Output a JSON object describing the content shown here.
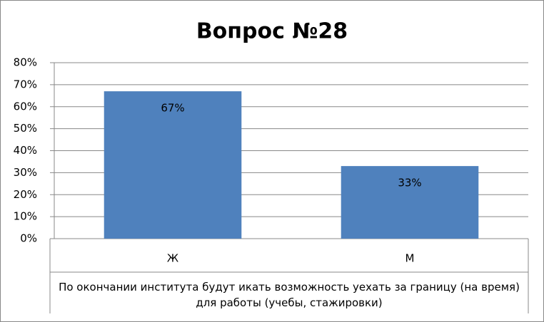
{
  "chart_data": {
    "type": "bar",
    "title": "Вопрос №28",
    "categories": [
      "Ж",
      "М"
    ],
    "values": [
      67,
      33
    ],
    "value_labels": [
      "67%",
      "33%"
    ],
    "color": "#4f81bd",
    "x_label": "По окончании  института  будут икать возможность уехать за границу  (на время) для работы (учебы, стажировки)",
    "ylim": [
      0,
      80
    ],
    "yticks": [
      {
        "value": 0,
        "label": "0%"
      },
      {
        "value": 10,
        "label": "10%"
      },
      {
        "value": 20,
        "label": "20%"
      },
      {
        "value": 30,
        "label": "30%"
      },
      {
        "value": 40,
        "label": "40%"
      },
      {
        "value": 50,
        "label": "50%"
      },
      {
        "value": 60,
        "label": "60%"
      },
      {
        "value": 70,
        "label": "70%"
      },
      {
        "value": 80,
        "label": "80%"
      }
    ],
    "grid": true
  }
}
